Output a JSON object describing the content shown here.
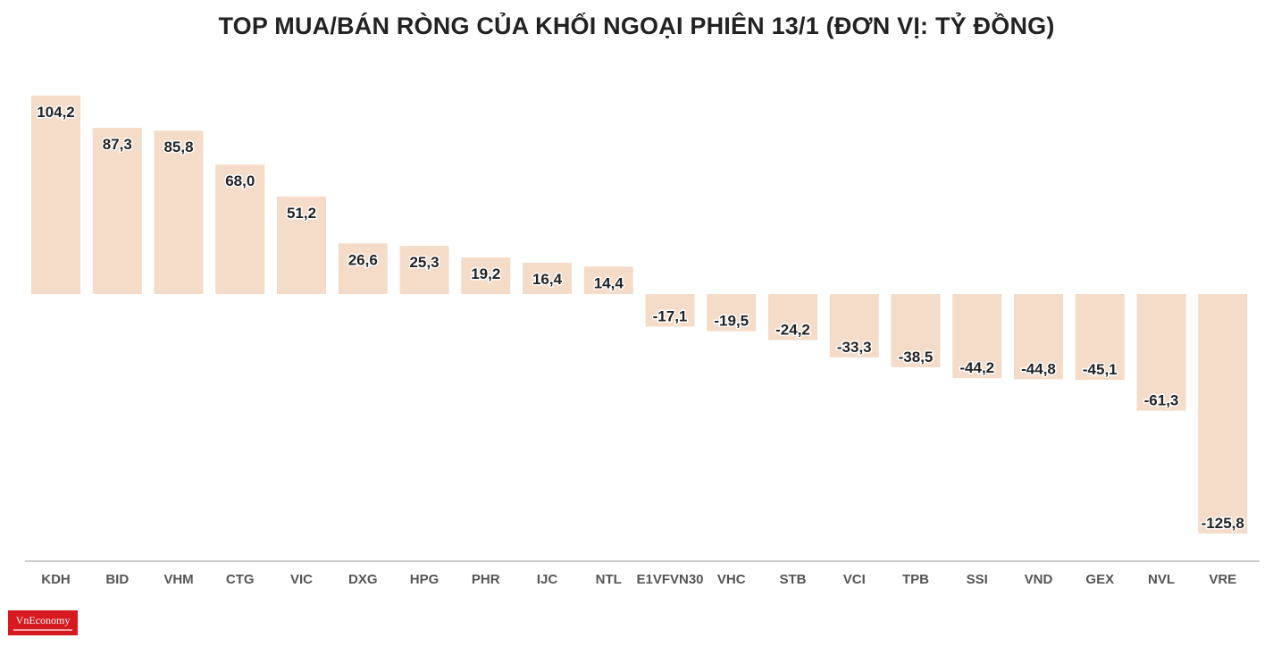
{
  "title": "TOP MUA/BÁN RÒNG CỦA KHỐI NGOẠI PHIÊN 13/1 (ĐƠN VỊ: TỶ ĐỒNG)",
  "brand": {
    "logo_text": "VnEconomy"
  },
  "colors": {
    "bar": "#f4dcc9",
    "axis": "#999999",
    "text": "#222222",
    "tick": "#555555",
    "logo": "#d71920"
  },
  "chart_data": {
    "type": "bar",
    "title": "TOP MUA/BÁN RÒNG CỦA KHỐI NGOẠI PHIÊN 13/1 (ĐƠN VỊ: TỶ ĐỒNG)",
    "xlabel": "",
    "ylabel": "",
    "categories": [
      "KDH",
      "BID",
      "VHM",
      "CTG",
      "VIC",
      "DXG",
      "HPG",
      "PHR",
      "IJC",
      "NTL",
      "E1VFVN30",
      "VHC",
      "STB",
      "VCI",
      "TPB",
      "SSI",
      "VND",
      "GEX",
      "NVL",
      "VRE"
    ],
    "values": [
      104.2,
      87.3,
      85.8,
      68.0,
      51.2,
      26.6,
      25.3,
      19.2,
      16.4,
      14.4,
      -17.1,
      -19.5,
      -24.2,
      -33.3,
      -38.5,
      -44.2,
      -44.8,
      -45.1,
      -61.3,
      -125.8
    ],
    "labels": [
      "104,2",
      "87,3",
      "85,8",
      "68,0",
      "51,2",
      "26,6",
      "25,3",
      "19,2",
      "16,4",
      "14,4",
      "-17,1",
      "-19,5",
      "-24,2",
      "-33,3",
      "-38,5",
      "-44,2",
      "-44,8",
      "-45,1",
      "-61,3",
      "-125,8"
    ],
    "ylim": [
      -140,
      110
    ],
    "grid": false,
    "legend": "none"
  }
}
